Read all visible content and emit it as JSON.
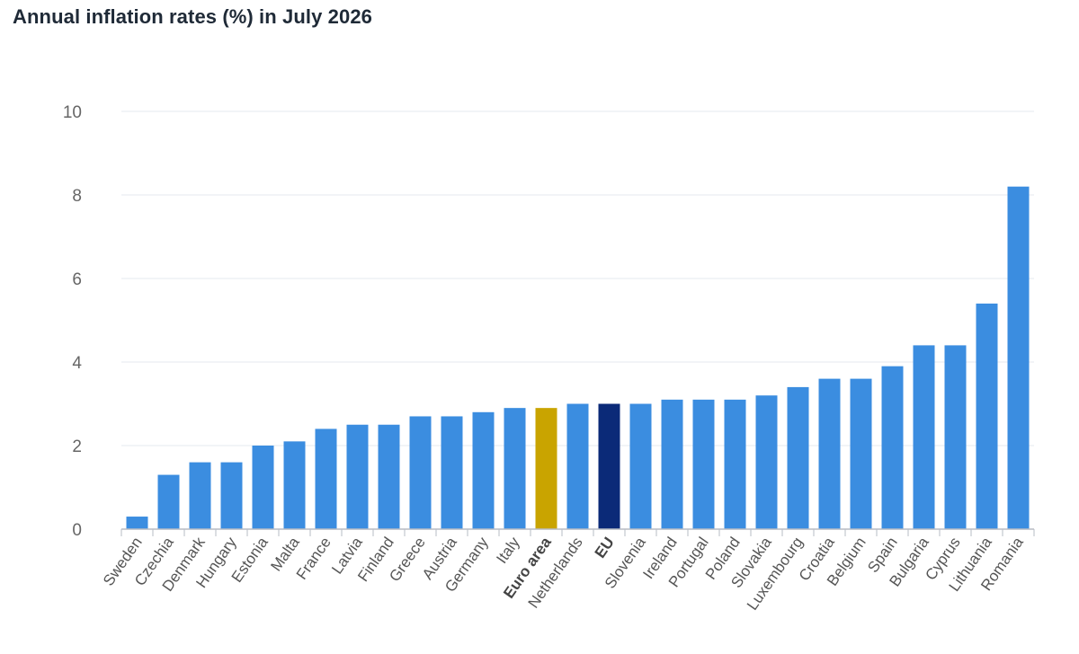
{
  "chart_data": {
    "type": "bar",
    "title": "Annual inflation rates (%) in July 2026",
    "xlabel": "",
    "ylabel": "",
    "ylim": [
      0,
      10
    ],
    "yticks": [
      0,
      2,
      4,
      6,
      8,
      10
    ],
    "grid": true,
    "legend": "none",
    "categories": [
      "Sweden",
      "Czechia",
      "Denmark",
      "Hungary",
      "Estonia",
      "Malta",
      "France",
      "Latvia",
      "Finland",
      "Greece",
      "Austria",
      "Germany",
      "Italy",
      "Euro area",
      "Netherlands",
      "EU",
      "Slovenia",
      "Ireland",
      "Portugal",
      "Poland",
      "Slovakia",
      "Luxembourg",
      "Croatia",
      "Belgium",
      "Spain",
      "Bulgaria",
      "Cyprus",
      "Lithuania",
      "Romania"
    ],
    "values": [
      0.3,
      1.3,
      1.6,
      1.6,
      2.0,
      2.1,
      2.4,
      2.5,
      2.5,
      2.7,
      2.7,
      2.8,
      2.9,
      2.9,
      3.0,
      3.0,
      3.0,
      3.1,
      3.1,
      3.1,
      3.2,
      3.4,
      3.6,
      3.6,
      3.9,
      4.4,
      4.4,
      5.4,
      8.2
    ],
    "highlighted": {
      "Euro area": "#c9a400",
      "EU": "#0b2a78"
    },
    "bold_labels": [
      "Euro area",
      "EU"
    ]
  },
  "colors": {
    "bar": "#3b8de0",
    "grid": "#e6e9ef",
    "axis": "#b7bcc4"
  }
}
